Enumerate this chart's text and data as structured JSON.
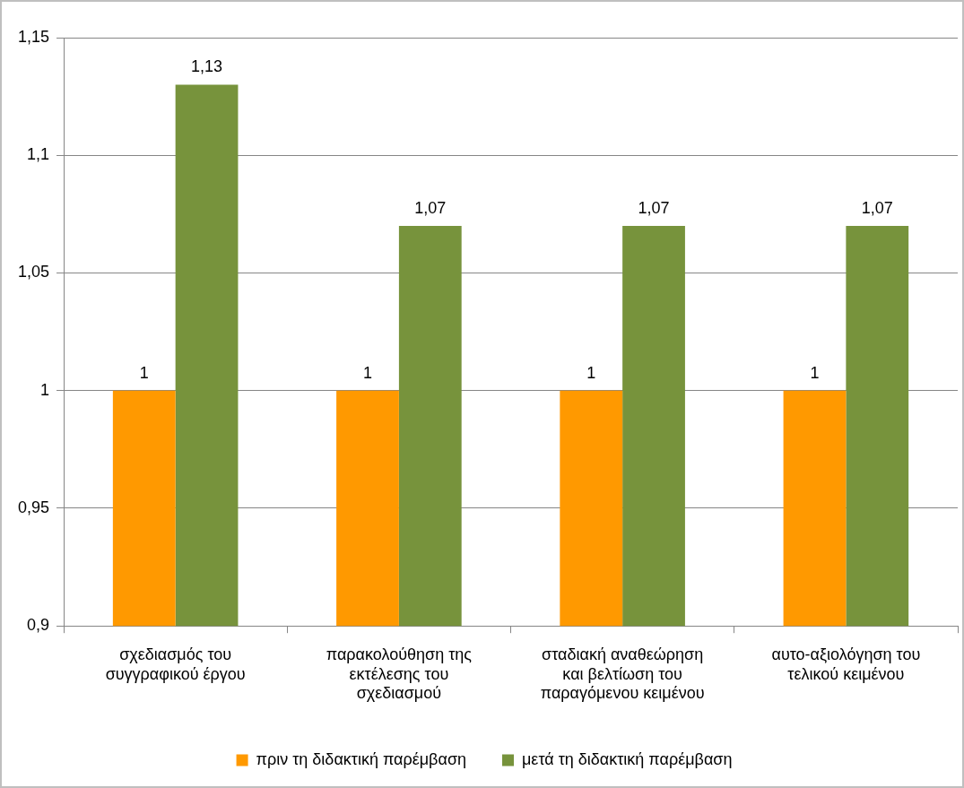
{
  "chart_data": {
    "type": "bar",
    "categories": [
      "σχεδιασμός του συγγραφικού έργου",
      "παρακολούθηση της εκτέλεσης του σχεδιασμού",
      "σταδιακή αναθεώρηση και βελτίωση του παραγόμενου κειμένου",
      "αυτο-αξιολόγηση του τελικού κειμένου"
    ],
    "series": [
      {
        "name": "πριν τη διδακτική παρέμβαση",
        "color": "#ff9900",
        "values": [
          1,
          1,
          1,
          1
        ],
        "value_labels": [
          "1",
          "1",
          "1",
          "1"
        ]
      },
      {
        "name": "μετά τη διδακτική παρέμβαση",
        "color": "#77933c",
        "values": [
          1.13,
          1.07,
          1.07,
          1.07
        ],
        "value_labels": [
          "1,13",
          "1,07",
          "1,07",
          "1,07"
        ]
      }
    ],
    "ylim": [
      0.9,
      1.15
    ],
    "yticks": [
      {
        "value": 0.9,
        "label": "0,9"
      },
      {
        "value": 0.95,
        "label": "0,95"
      },
      {
        "value": 1,
        "label": "1"
      },
      {
        "value": 1.05,
        "label": "1,05"
      },
      {
        "value": 1.1,
        "label": "1,1"
      },
      {
        "value": 1.15,
        "label": "1,15"
      }
    ],
    "grid": "y",
    "legend": "bottom"
  }
}
